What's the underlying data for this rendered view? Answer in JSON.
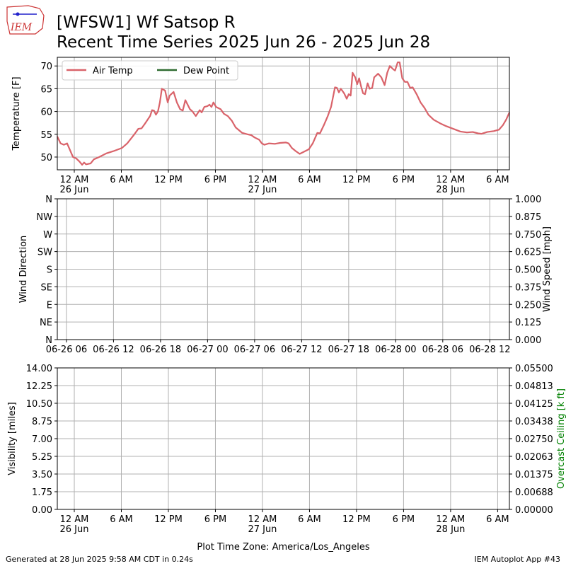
{
  "header": {
    "logo": "IEM",
    "title": "[WFSW1] Wf Satsop R",
    "subtitle": "Recent Time Series 2025 Jun 26 - 2025 Jun 28"
  },
  "footer": {
    "timezone": "Plot Time Zone: America/Los_Angeles",
    "generated": "Generated at 28 Jun 2025 9:58 AM CDT in 0.24s",
    "app": "IEM Autoplot App #43"
  },
  "chart_data": [
    {
      "type": "line",
      "ylabel": "Temperature [F]",
      "grid": true,
      "legend": "upper left",
      "xlim": [
        "2025-06-25T21:50",
        "2025-06-28T07:30"
      ],
      "xticks": [
        {
          "value": "2025-06-26T00:00",
          "label": "12 AM",
          "sublabel": "26 Jun"
        },
        {
          "value": "2025-06-26T06:00",
          "label": "6 AM"
        },
        {
          "value": "2025-06-26T12:00",
          "label": "12 PM"
        },
        {
          "value": "2025-06-26T18:00",
          "label": "6 PM"
        },
        {
          "value": "2025-06-27T00:00",
          "label": "12 AM",
          "sublabel": "27 Jun"
        },
        {
          "value": "2025-06-27T06:00",
          "label": "6 AM"
        },
        {
          "value": "2025-06-27T12:00",
          "label": "12 PM"
        },
        {
          "value": "2025-06-27T18:00",
          "label": "6 PM"
        },
        {
          "value": "2025-06-28T00:00",
          "label": "12 AM",
          "sublabel": "28 Jun"
        },
        {
          "value": "2025-06-28T06:00",
          "label": "6 AM"
        }
      ],
      "ylim": [
        47.2,
        71.9
      ],
      "yticks": [
        50,
        55,
        60,
        65,
        70
      ],
      "x": [
        "2025-06-25T21:50",
        "2025-06-25T22:15",
        "2025-06-25T22:40",
        "2025-06-25T23:05",
        "2025-06-25T23:20",
        "2025-06-25T23:50",
        "2025-06-26T00:15",
        "2025-06-26T00:40",
        "2025-06-26T01:00",
        "2025-06-26T01:15",
        "2025-06-26T01:30",
        "2025-06-26T02:05",
        "2025-06-26T02:30",
        "2025-06-26T03:10",
        "2025-06-26T04:05",
        "2025-06-26T05:00",
        "2025-06-26T06:05",
        "2025-06-26T06:45",
        "2025-06-26T07:40",
        "2025-06-26T08:10",
        "2025-06-26T08:35",
        "2025-06-26T09:00",
        "2025-06-26T09:40",
        "2025-06-26T09:55",
        "2025-06-26T10:10",
        "2025-06-26T10:25",
        "2025-06-26T10:40",
        "2025-06-26T10:55",
        "2025-06-26T11:10",
        "2025-06-26T11:35",
        "2025-06-26T11:55",
        "2025-06-26T12:10",
        "2025-06-26T12:40",
        "2025-06-26T13:05",
        "2025-06-26T13:30",
        "2025-06-26T13:50",
        "2025-06-26T14:10",
        "2025-06-26T14:45",
        "2025-06-26T15:05",
        "2025-06-26T15:30",
        "2025-06-26T16:00",
        "2025-06-26T16:15",
        "2025-06-26T16:35",
        "2025-06-26T17:00",
        "2025-06-26T17:15",
        "2025-06-26T17:30",
        "2025-06-26T17:45",
        "2025-06-26T18:05",
        "2025-06-26T18:40",
        "2025-06-26T19:05",
        "2025-06-26T19:35",
        "2025-06-26T20:05",
        "2025-06-26T20:35",
        "2025-06-26T21:25",
        "2025-06-26T22:05",
        "2025-06-26T22:35",
        "2025-06-26T23:00",
        "2025-06-26T23:35",
        "2025-06-26T23:55",
        "2025-06-27T00:15",
        "2025-06-27T00:50",
        "2025-06-27T01:35",
        "2025-06-27T02:15",
        "2025-06-27T03:00",
        "2025-06-27T03:20",
        "2025-06-27T03:45",
        "2025-06-27T04:15",
        "2025-06-27T04:45",
        "2025-06-27T05:20",
        "2025-06-27T05:55",
        "2025-06-27T06:25",
        "2025-06-27T07:00",
        "2025-06-27T07:20",
        "2025-06-27T07:50",
        "2025-06-27T08:20",
        "2025-06-27T08:45",
        "2025-06-27T09:15",
        "2025-06-27T09:30",
        "2025-06-27T09:45",
        "2025-06-27T10:00",
        "2025-06-27T10:25",
        "2025-06-27T10:45",
        "2025-06-27T11:00",
        "2025-06-27T11:15",
        "2025-06-27T11:30",
        "2025-06-27T11:50",
        "2025-06-27T12:05",
        "2025-06-27T12:20",
        "2025-06-27T12:35",
        "2025-06-27T12:50",
        "2025-06-27T13:05",
        "2025-06-27T13:25",
        "2025-06-27T13:40",
        "2025-06-27T14:00",
        "2025-06-27T14:15",
        "2025-06-27T14:45",
        "2025-06-27T15:10",
        "2025-06-27T15:35",
        "2025-06-27T15:55",
        "2025-06-27T16:15",
        "2025-06-27T16:40",
        "2025-06-27T16:55",
        "2025-06-27T17:15",
        "2025-06-27T17:30",
        "2025-06-27T17:50",
        "2025-06-27T18:10",
        "2025-06-27T18:30",
        "2025-06-27T18:50",
        "2025-06-27T19:10",
        "2025-06-27T19:40",
        "2025-06-27T20:10",
        "2025-06-27T20:40",
        "2025-06-27T21:10",
        "2025-06-27T21:50",
        "2025-06-27T22:40",
        "2025-06-27T23:25",
        "2025-06-28T00:20",
        "2025-06-28T01:15",
        "2025-06-28T02:05",
        "2025-06-28T02:50",
        "2025-06-28T03:30",
        "2025-06-28T03:55",
        "2025-06-28T04:40",
        "2025-06-28T05:30",
        "2025-06-28T06:10",
        "2025-06-28T06:40",
        "2025-06-28T07:05",
        "2025-06-28T07:30"
      ],
      "series": [
        {
          "name": "Air Temp",
          "color": "#d9636a",
          "values": [
            54.5,
            53,
            52.7,
            53,
            52,
            50,
            49.7,
            49,
            48.3,
            48.8,
            48.4,
            48.6,
            49.5,
            50,
            50.8,
            51.3,
            52,
            53,
            55,
            56.2,
            56.3,
            57.3,
            59,
            60.3,
            60.2,
            59.3,
            60,
            62,
            65,
            64.6,
            62,
            63.5,
            64.3,
            62,
            60.5,
            60.2,
            62.5,
            60.5,
            60,
            59,
            60.3,
            59.8,
            61,
            61.2,
            61.5,
            61,
            62,
            61,
            60.5,
            59.5,
            59,
            58,
            56.5,
            55.3,
            55,
            54.8,
            54.3,
            53.8,
            53,
            52.7,
            53,
            52.9,
            53.1,
            53.2,
            53,
            52,
            51.3,
            50.7,
            51.2,
            51.7,
            53,
            55.3,
            55.2,
            57,
            59,
            61,
            65.3,
            65.2,
            64.2,
            65,
            64,
            62.8,
            63.8,
            63.5,
            68.5,
            67.5,
            66,
            67.3,
            65.5,
            64,
            63.8,
            66.2,
            65,
            65.2,
            67.5,
            68.3,
            67.5,
            65.8,
            68.5,
            70,
            69.3,
            69,
            70.8,
            70.8,
            67.3,
            66.5,
            66.5,
            65.2,
            65.3,
            63.8,
            62,
            60.8,
            59.3,
            58.2,
            57.4,
            56.8,
            56.2,
            55.6,
            55.4,
            55.5,
            55.2,
            55.1,
            55.5,
            55.7,
            56,
            57,
            58.2,
            59.8
          ]
        },
        {
          "name": "Dew Point",
          "color": "#2e6b30",
          "values": [
            null,
            null,
            null,
            null,
            null,
            null,
            null,
            null,
            null,
            null,
            null,
            null,
            null,
            null,
            null,
            null,
            null,
            null,
            null,
            null,
            null,
            null,
            null,
            null,
            null,
            null,
            null,
            null,
            null,
            null,
            null,
            null,
            null,
            null,
            null,
            null,
            null,
            null,
            null,
            null,
            null,
            null,
            null,
            null,
            null,
            null,
            null,
            null,
            null,
            null,
            null,
            null,
            null,
            null,
            null,
            null,
            null,
            null,
            null,
            null,
            null,
            null,
            null,
            null,
            null,
            null,
            null,
            null,
            null,
            null,
            null,
            null,
            null,
            null,
            null,
            null,
            null,
            null,
            null,
            null,
            null,
            null,
            null,
            null,
            null,
            null,
            null,
            null,
            null,
            null,
            null,
            null,
            null,
            null,
            null,
            null,
            null,
            null,
            null,
            null,
            null,
            null,
            null,
            null,
            null,
            null,
            null,
            null,
            null,
            null,
            null,
            null,
            null,
            null,
            null,
            null,
            null,
            null,
            null,
            null,
            null,
            null,
            null,
            null,
            null,
            null,
            null,
            null
          ]
        }
      ]
    },
    {
      "type": "line",
      "ylabel": "Wind Direction",
      "y2label": "Wind Speed [mph]",
      "grid": true,
      "xlim": [
        "2025-06-26T04:50",
        "2025-06-28T14:30"
      ],
      "xticks": [
        {
          "value": "2025-06-26T06:00",
          "label": "06-26 06"
        },
        {
          "value": "2025-06-26T12:00",
          "label": "06-26 12"
        },
        {
          "value": "2025-06-26T18:00",
          "label": "06-26 18"
        },
        {
          "value": "2025-06-27T00:00",
          "label": "06-27 00"
        },
        {
          "value": "2025-06-27T06:00",
          "label": "06-27 06"
        },
        {
          "value": "2025-06-27T12:00",
          "label": "06-27 12"
        },
        {
          "value": "2025-06-27T18:00",
          "label": "06-27 18"
        },
        {
          "value": "2025-06-28T00:00",
          "label": "06-28 00"
        },
        {
          "value": "2025-06-28T06:00",
          "label": "06-28 06"
        },
        {
          "value": "2025-06-28T12:00",
          "label": "06-28 12"
        }
      ],
      "ylim": [
        0,
        360
      ],
      "yticks": [
        {
          "value": 0,
          "label": "N"
        },
        {
          "value": 45,
          "label": "NE"
        },
        {
          "value": 90,
          "label": "E"
        },
        {
          "value": 135,
          "label": "SE"
        },
        {
          "value": 180,
          "label": "S"
        },
        {
          "value": 225,
          "label": "SW"
        },
        {
          "value": 270,
          "label": "W"
        },
        {
          "value": 315,
          "label": "NW"
        },
        {
          "value": 360,
          "label": "N"
        }
      ],
      "y2lim": [
        0,
        1
      ],
      "y2ticks": [
        {
          "value": 0,
          "label": "0.000"
        },
        0.125,
        {
          "value": 0.25,
          "label": "0.250"
        },
        0.375,
        {
          "value": 0.5,
          "label": "0.500"
        },
        0.625,
        {
          "value": 0.75,
          "label": "0.750"
        },
        0.875,
        {
          "value": 1,
          "label": "1.000"
        }
      ],
      "series": []
    },
    {
      "type": "line",
      "ylabel": "Visibility [miles]",
      "y2label": "Overcast Ceiling [k ft]",
      "y2label_color": "#008000",
      "grid": true,
      "xlabel": "Plot Time Zone: America/Los_Angeles",
      "xlim": [
        "2025-06-25T21:50",
        "2025-06-28T07:30"
      ],
      "xticks": [
        {
          "value": "2025-06-26T00:00",
          "label": "12 AM",
          "sublabel": "26 Jun"
        },
        {
          "value": "2025-06-26T06:00",
          "label": "6 AM"
        },
        {
          "value": "2025-06-26T12:00",
          "label": "12 PM"
        },
        {
          "value": "2025-06-26T18:00",
          "label": "6 PM"
        },
        {
          "value": "2025-06-27T00:00",
          "label": "12 AM",
          "sublabel": "27 Jun"
        },
        {
          "value": "2025-06-27T06:00",
          "label": "6 AM"
        },
        {
          "value": "2025-06-27T12:00",
          "label": "12 PM"
        },
        {
          "value": "2025-06-27T18:00",
          "label": "6 PM"
        },
        {
          "value": "2025-06-28T00:00",
          "label": "12 AM",
          "sublabel": "28 Jun"
        },
        {
          "value": "2025-06-28T06:00",
          "label": "6 AM"
        }
      ],
      "ylim": [
        0,
        14
      ],
      "yticks": [
        {
          "value": 0,
          "label": "0.00"
        },
        1.75,
        {
          "value": 3.5,
          "label": "3.50"
        },
        5.25,
        {
          "value": 7,
          "label": "7.00"
        },
        8.75,
        {
          "value": 10.5,
          "label": "10.50"
        },
        12.25,
        {
          "value": 14,
          "label": "14.00"
        }
      ],
      "y2lim": [
        0,
        0.055
      ],
      "y2ticks": [
        {
          "value": 0,
          "label": "0.00000"
        },
        {
          "value": 0.006875,
          "label": "0.00688"
        },
        0.01375,
        {
          "value": 0.020625,
          "label": "0.02063"
        },
        {
          "value": 0.0275,
          "label": "0.02750"
        },
        {
          "value": 0.034375,
          "label": "0.03438"
        },
        0.04125,
        {
          "value": 0.048125,
          "label": "0.04813"
        },
        {
          "value": 0.055,
          "label": "0.05500"
        }
      ],
      "series": []
    }
  ]
}
